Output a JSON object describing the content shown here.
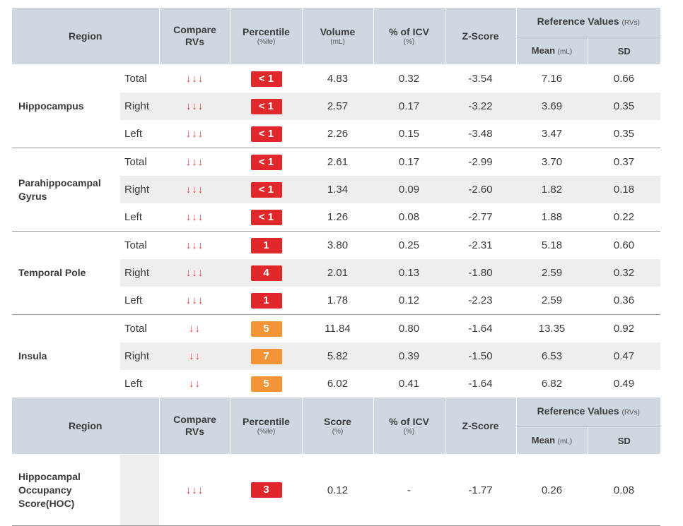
{
  "header": {
    "region": "Region",
    "compare_line1": "Compare",
    "compare_line2": "RVs",
    "percentile": "Percentile",
    "percentile_unit": "(%ile)",
    "volume": "Volume",
    "volume_unit": "(mL)",
    "icv": "% of ICV",
    "icv_unit": "(%)",
    "zscore": "Z-Score",
    "ref": "Reference Values",
    "ref_unit": "(RVs)",
    "mean": "Mean",
    "mean_unit": "(mL)",
    "sd": "SD"
  },
  "rows": [
    {
      "region": "Hippocampus",
      "sub": "Total",
      "arrows": "↓↓↓",
      "pct": "< 1",
      "pct_color": "red",
      "vol": "4.83",
      "icv": "0.32",
      "z": "-3.54",
      "mean": "7.16",
      "sd": "0.66"
    },
    {
      "region": "",
      "sub": "Right",
      "arrows": "↓↓↓",
      "pct": "< 1",
      "pct_color": "red",
      "vol": "2.57",
      "icv": "0.17",
      "z": "-3.22",
      "mean": "3.69",
      "sd": "0.35"
    },
    {
      "region": "",
      "sub": "Left",
      "arrows": "↓↓↓",
      "pct": "< 1",
      "pct_color": "red",
      "vol": "2.26",
      "icv": "0.15",
      "z": "-3.48",
      "mean": "3.47",
      "sd": "0.35"
    },
    {
      "region": "Parahippocampal Gyrus",
      "sub": "Total",
      "arrows": "↓↓↓",
      "pct": "< 1",
      "pct_color": "red",
      "vol": "2.61",
      "icv": "0.17",
      "z": "-2.99",
      "mean": "3.70",
      "sd": "0.37"
    },
    {
      "region": "",
      "sub": "Right",
      "arrows": "↓↓↓",
      "pct": "< 1",
      "pct_color": "red",
      "vol": "1.34",
      "icv": "0.09",
      "z": "-2.60",
      "mean": "1.82",
      "sd": "0.18"
    },
    {
      "region": "",
      "sub": "Left",
      "arrows": "↓↓↓",
      "pct": "< 1",
      "pct_color": "red",
      "vol": "1.26",
      "icv": "0.08",
      "z": "-2.77",
      "mean": "1.88",
      "sd": "0.22"
    },
    {
      "region": "Temporal Pole",
      "sub": "Total",
      "arrows": "↓↓↓",
      "pct": "1",
      "pct_color": "red",
      "vol": "3.80",
      "icv": "0.25",
      "z": "-2.31",
      "mean": "5.18",
      "sd": "0.60"
    },
    {
      "region": "",
      "sub": "Right",
      "arrows": "↓↓↓",
      "pct": "4",
      "pct_color": "red",
      "vol": "2.01",
      "icv": "0.13",
      "z": "-1.80",
      "mean": "2.59",
      "sd": "0.32"
    },
    {
      "region": "",
      "sub": "Left",
      "arrows": "↓↓↓",
      "pct": "1",
      "pct_color": "red",
      "vol": "1.78",
      "icv": "0.12",
      "z": "-2.23",
      "mean": "2.59",
      "sd": "0.36"
    },
    {
      "region": "Insula",
      "sub": "Total",
      "arrows": "↓↓",
      "pct": "5",
      "pct_color": "orange",
      "vol": "11.84",
      "icv": "0.80",
      "z": "-1.64",
      "mean": "13.35",
      "sd": "0.92"
    },
    {
      "region": "",
      "sub": "Right",
      "arrows": "↓↓",
      "pct": "7",
      "pct_color": "orange",
      "vol": "5.82",
      "icv": "0.39",
      "z": "-1.50",
      "mean": "6.53",
      "sd": "0.47"
    },
    {
      "region": "",
      "sub": "Left",
      "arrows": "↓↓",
      "pct": "5",
      "pct_color": "orange",
      "vol": "6.02",
      "icv": "0.41",
      "z": "-1.64",
      "mean": "6.82",
      "sd": "0.49"
    }
  ],
  "header2": {
    "region": "Region",
    "compare_line1": "Compare",
    "compare_line2": "RVs",
    "percentile": "Percentile",
    "percentile_unit": "(%ile)",
    "score": "Score",
    "score_unit": "(%)",
    "icv": "% of ICV",
    "icv_unit": "(%)",
    "zscore": "Z-Score",
    "ref": "Reference Values",
    "ref_unit": "(RVs)",
    "mean": "Mean",
    "mean_unit": "(mL)",
    "sd": "SD"
  },
  "hoc": {
    "region": "Hippocampal Occupancy Score(HOC)",
    "arrows": "↓↓↓",
    "pct": "3",
    "pct_color": "red",
    "score": "0.12",
    "icv": "-",
    "z": "-1.77",
    "mean": "0.26",
    "sd": "0.08"
  },
  "colors": {
    "header_bg": "#cfd8e0",
    "badge_red": "#e0282a",
    "badge_orange": "#f39437",
    "arrow_red": "#e04040",
    "row_shade": "#eeeeee"
  }
}
